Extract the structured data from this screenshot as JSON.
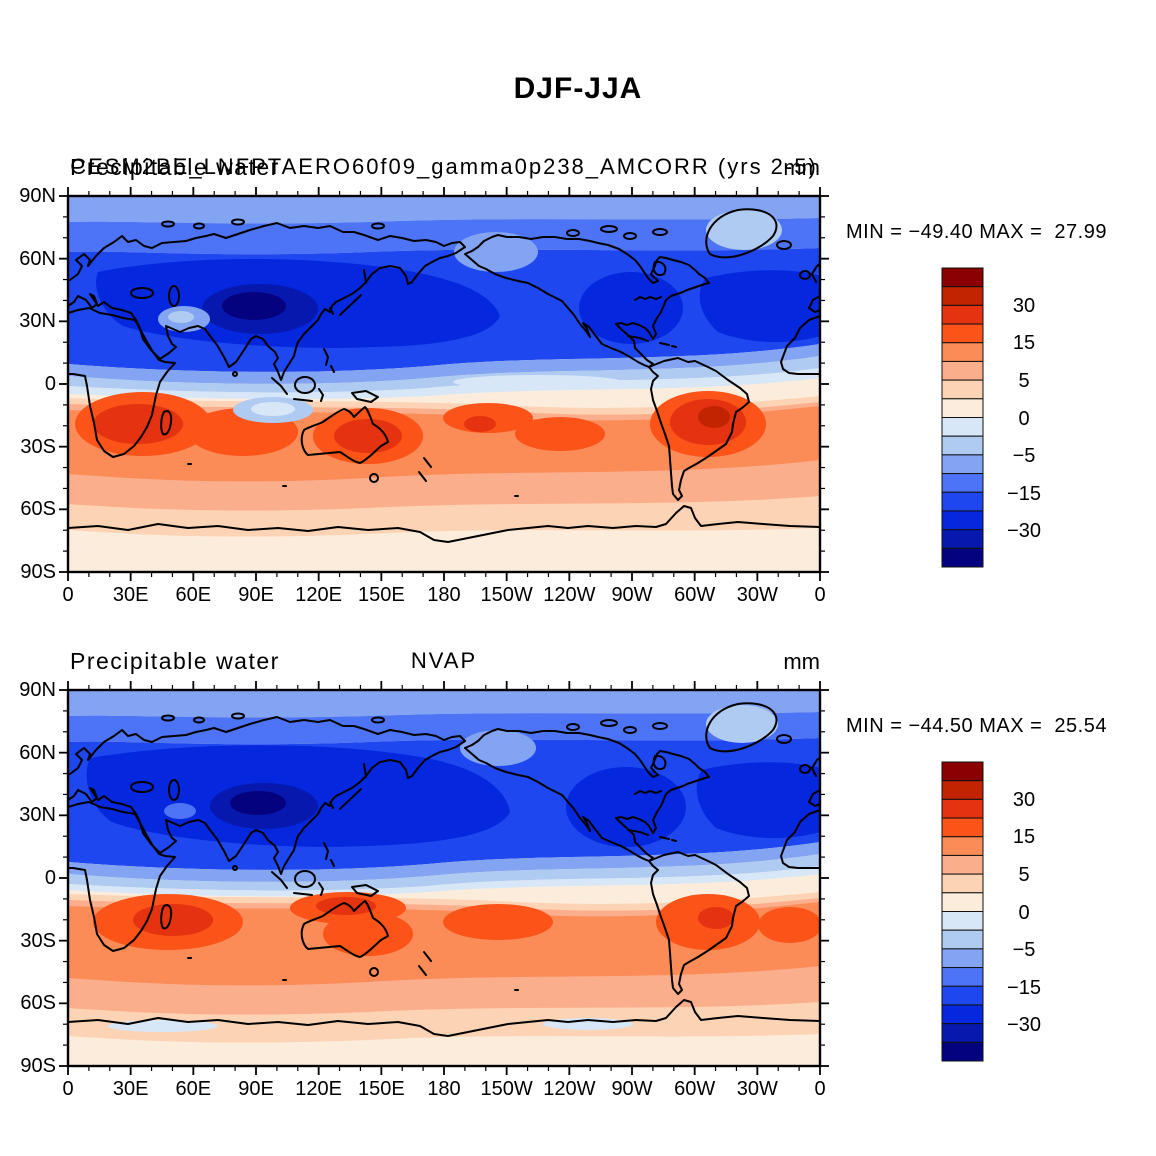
{
  "main_title": "DJF-JJA",
  "colorbar": {
    "colors": [
      "#8B0000",
      "#C22300",
      "#E53210",
      "#FB5318",
      "#FB8B57",
      "#FBAE8C",
      "#FCD3B4",
      "#FCECDC",
      "#D8E7F8",
      "#B0CBF2",
      "#82A4F3",
      "#4D74F6",
      "#1E47F0",
      "#0527DE",
      "#0618AE",
      "#04027E"
    ],
    "tick_labels": [
      "30",
      "15",
      "5",
      "0",
      "−5",
      "−15",
      "−30"
    ]
  },
  "panels": [
    {
      "left_title": "Precipitable water",
      "center_title": "CESM2BE_LNFPTAERO60f09_gamma0p238_AMCORR (yrs 2-5)",
      "right_title": "mm",
      "stats": "MIN = −49.40 MAX =  27.99",
      "yticks": [
        "90N",
        "60N",
        "30N",
        "0",
        "30S",
        "60S",
        "90S"
      ],
      "xticks": [
        "0",
        "30E",
        "60E",
        "90E",
        "120E",
        "150E",
        "180",
        "150W",
        "120W",
        "90W",
        "60W",
        "30W",
        "0"
      ]
    },
    {
      "left_title": "Precipitable water",
      "center_title": "NVAP",
      "right_title": "mm",
      "stats": "MIN = −44.50 MAX =  25.54",
      "yticks": [
        "90N",
        "60N",
        "30N",
        "0",
        "30S",
        "60S",
        "90S"
      ],
      "xticks": [
        "0",
        "30E",
        "60E",
        "90E",
        "120E",
        "150E",
        "180",
        "150W",
        "120W",
        "90W",
        "60W",
        "30W",
        "0"
      ]
    }
  ],
  "chart_data": [
    {
      "type": "heatmap",
      "panel": "top",
      "title": "CESM2BE_LNFPTAERO60f09_gamma0p238_AMCORR (yrs 2-5)",
      "variable": "Precipitable water",
      "season_difference": "DJF-JJA",
      "units": "mm",
      "min": -49.4,
      "max": 27.99,
      "projection": "cylindrical equidistant, lon 0-360, lat 90N-90S",
      "lon_ticks": [
        "0",
        "30E",
        "60E",
        "90E",
        "120E",
        "150E",
        "180",
        "150W",
        "120W",
        "90W",
        "60W",
        "30W",
        "0"
      ],
      "lat_ticks": [
        "90N",
        "60N",
        "30N",
        "0",
        "30S",
        "60S",
        "90S"
      ],
      "colorbar_labeled_levels": [
        30,
        15,
        5,
        0,
        -5,
        -15,
        -30
      ],
      "approx_zonal_mean": {
        "lat": [
          80,
          60,
          40,
          25,
          10,
          0,
          -10,
          -25,
          -40,
          -60,
          -80
        ],
        "value": [
          -8,
          -14,
          -24,
          -28,
          -8,
          2,
          14,
          18,
          8,
          4,
          2
        ]
      },
      "notable_features": "minimum (−49.4) over South Asia; maxima (+28) over southern Africa, Australia and central South America"
    },
    {
      "type": "heatmap",
      "panel": "bottom",
      "title": "NVAP",
      "variable": "Precipitable water",
      "season_difference": "DJF-JJA",
      "units": "mm",
      "min": -44.5,
      "max": 25.54,
      "projection": "cylindrical equidistant, lon 0-360, lat 90N-90S",
      "lon_ticks": [
        "0",
        "30E",
        "60E",
        "90E",
        "120E",
        "150E",
        "180",
        "150W",
        "120W",
        "90W",
        "60W",
        "30W",
        "0"
      ],
      "lat_ticks": [
        "90N",
        "60N",
        "30N",
        "0",
        "30S",
        "60S",
        "90S"
      ],
      "colorbar_labeled_levels": [
        30,
        15,
        5,
        0,
        -5,
        -15,
        -30
      ],
      "approx_zonal_mean": {
        "lat": [
          80,
          60,
          40,
          25,
          10,
          0,
          -10,
          -25,
          -40,
          -60,
          -80
        ],
        "value": [
          -9,
          -16,
          -26,
          -27,
          -6,
          3,
          13,
          15,
          7,
          3,
          2
        ]
      },
      "notable_features": "broad deep-blue band across NH mid-latitudes; maxima over SW Indian Ocean/Madagascar, NW Australia and SE South America"
    }
  ]
}
